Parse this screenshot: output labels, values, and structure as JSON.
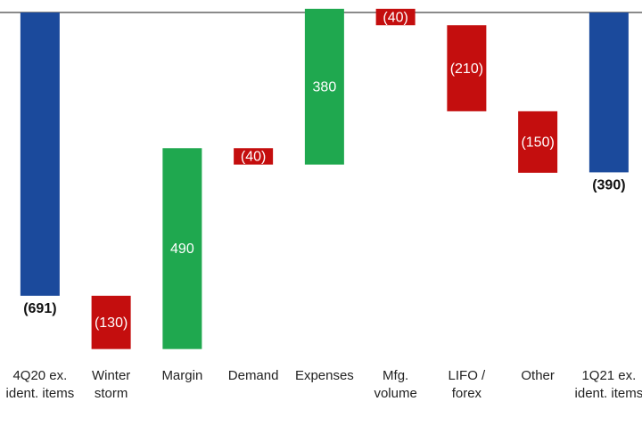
{
  "chart_data": {
    "type": "waterfall",
    "categories": [
      "4Q20 ex. ident. items",
      "Winter storm",
      "Margin",
      "Demand",
      "Expenses",
      "Mfg. volume",
      "LIFO / forex",
      "Other",
      "1Q21 ex. ident. items"
    ],
    "values": [
      -691,
      -130,
      490,
      -40,
      380,
      -40,
      -210,
      -150,
      -390
    ],
    "value_labels": [
      "(691)",
      "(130)",
      "490",
      "(40)",
      "380",
      "(40)",
      "(210)",
      "(150)",
      "(390)"
    ],
    "totals": [
      true,
      false,
      false,
      false,
      false,
      false,
      false,
      false,
      true
    ],
    "colors": {
      "total": "#1b4a9c",
      "increase": "#1fa84f",
      "decrease": "#c40e0e"
    }
  }
}
